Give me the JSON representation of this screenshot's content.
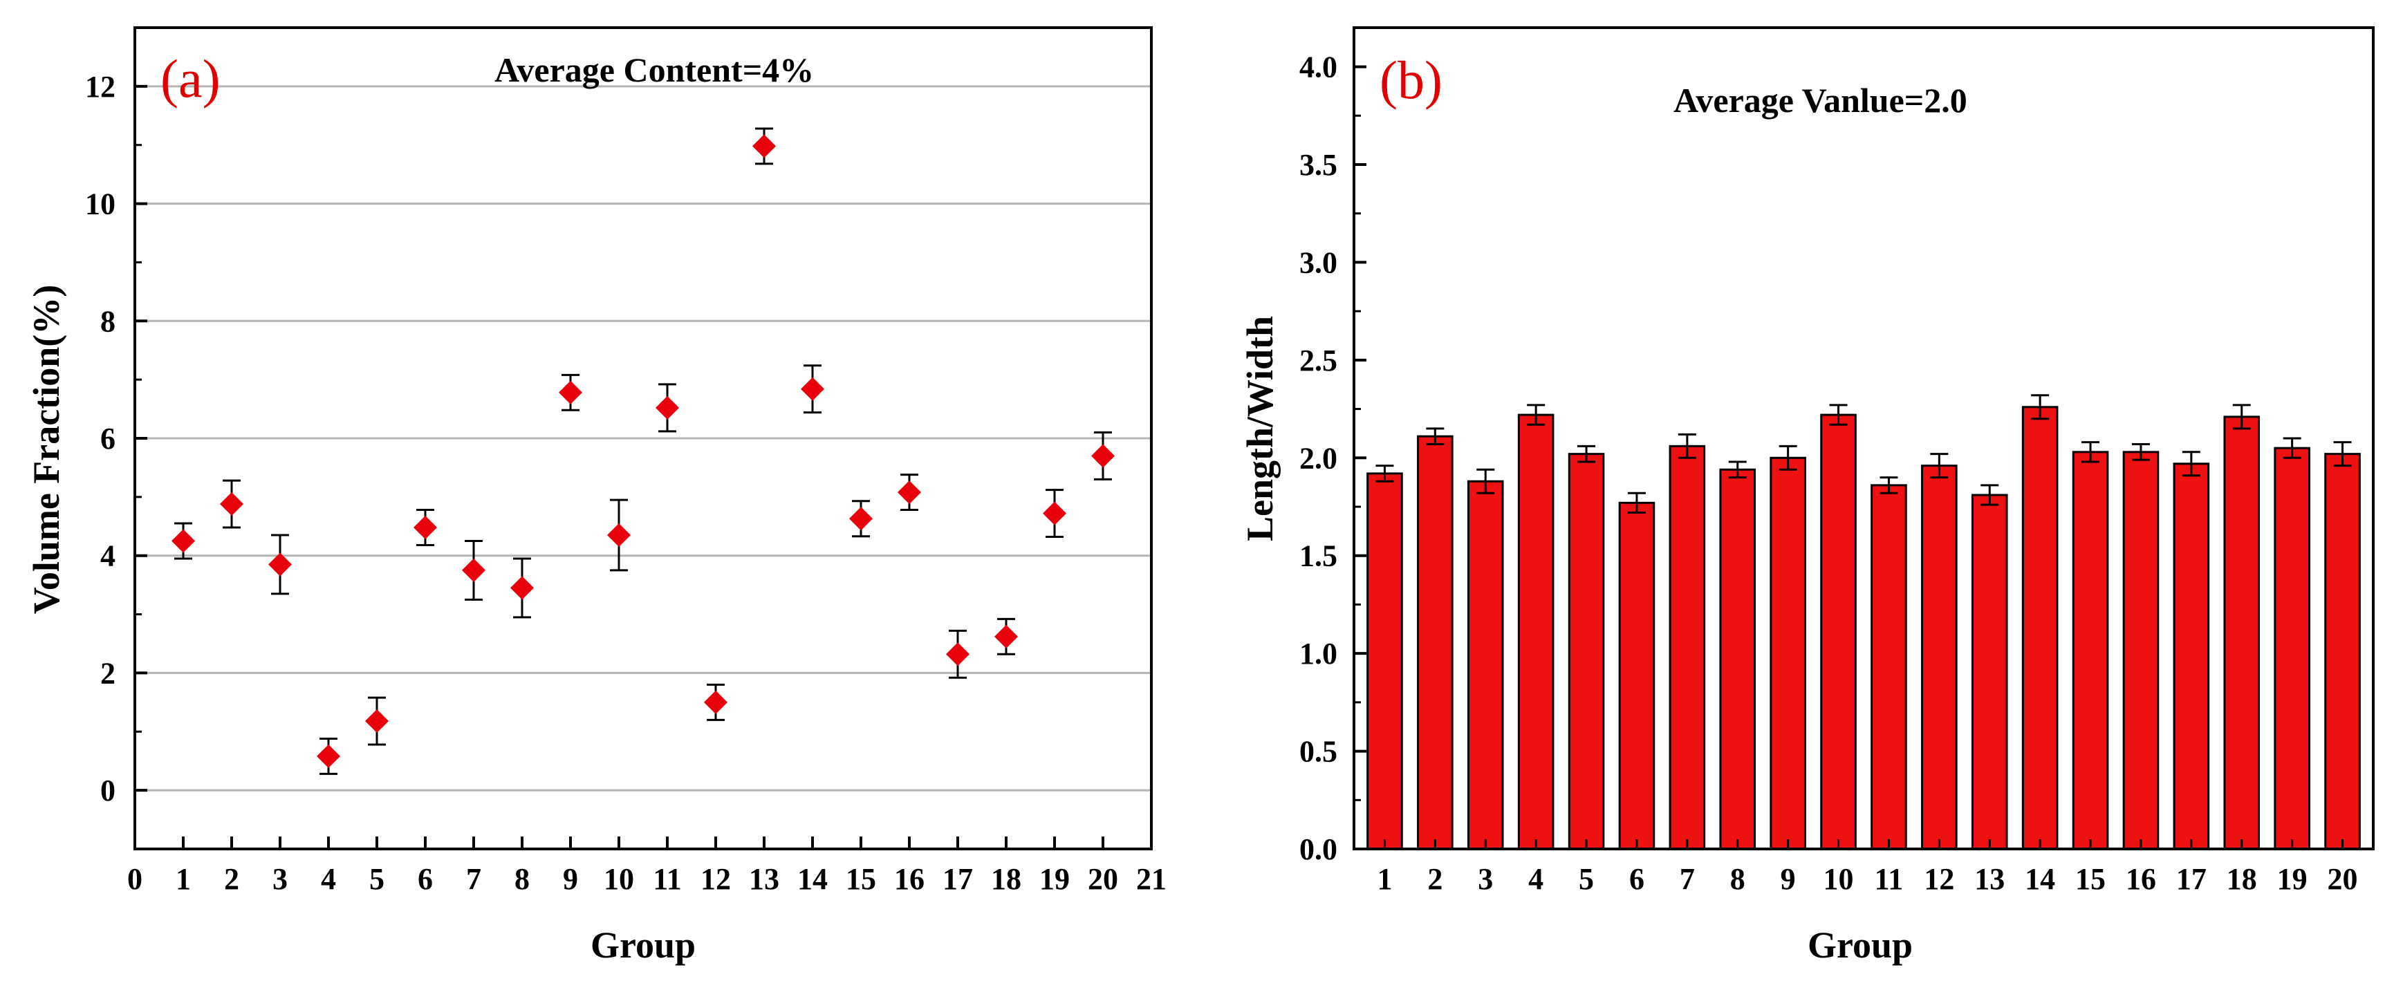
{
  "chart_data": [
    {
      "type": "scatter",
      "panel_label": "(a)",
      "annotation": "Average Content=4%",
      "xlabel": "Group",
      "ylabel": "Volume Fraction(%)",
      "xlim": [
        0,
        21
      ],
      "ylim": [
        -1,
        13
      ],
      "xticks": [
        "0",
        "1",
        "2",
        "3",
        "4",
        "5",
        "6",
        "7",
        "8",
        "9",
        "10",
        "11",
        "12",
        "13",
        "14",
        "15",
        "16",
        "17",
        "18",
        "19",
        "20",
        "21"
      ],
      "yticks": [
        "0",
        "2",
        "4",
        "6",
        "8",
        "10",
        "12"
      ],
      "grid": true,
      "marker": "diamond",
      "color": "#e8000b",
      "x": [
        1,
        2,
        3,
        4,
        5,
        6,
        7,
        8,
        9,
        10,
        11,
        12,
        13,
        14,
        15,
        16,
        17,
        18,
        19,
        20
      ],
      "values": [
        4.25,
        4.88,
        3.85,
        0.58,
        1.18,
        4.48,
        3.75,
        3.45,
        6.78,
        4.35,
        6.52,
        1.5,
        10.98,
        6.84,
        4.63,
        5.08,
        2.32,
        2.62,
        4.72,
        5.7
      ],
      "errors": [
        0.3,
        0.4,
        0.5,
        0.3,
        0.4,
        0.3,
        0.5,
        0.5,
        0.3,
        0.6,
        0.4,
        0.3,
        0.3,
        0.4,
        0.3,
        0.3,
        0.4,
        0.3,
        0.4,
        0.4
      ]
    },
    {
      "type": "bar",
      "panel_label": "(b)",
      "annotation": "Average Vanlue=2.0",
      "xlabel": "Group",
      "ylabel": "Length/Width",
      "ylim": [
        0,
        4.2
      ],
      "yticks": [
        "0.0",
        "0.5",
        "1.0",
        "1.5",
        "2.0",
        "2.5",
        "3.0",
        "3.5",
        "4.0"
      ],
      "grid": false,
      "color": "#ee1111",
      "categories": [
        "1",
        "2",
        "3",
        "4",
        "5",
        "6",
        "7",
        "8",
        "9",
        "10",
        "11",
        "12",
        "13",
        "14",
        "15",
        "16",
        "17",
        "18",
        "19",
        "20"
      ],
      "values": [
        1.92,
        2.11,
        1.88,
        2.22,
        2.02,
        1.77,
        2.06,
        1.94,
        2.0,
        2.22,
        1.86,
        1.96,
        1.81,
        2.26,
        2.03,
        2.03,
        1.97,
        2.21,
        2.05,
        2.02
      ],
      "errors": [
        0.04,
        0.04,
        0.06,
        0.05,
        0.04,
        0.05,
        0.06,
        0.04,
        0.06,
        0.05,
        0.04,
        0.06,
        0.05,
        0.06,
        0.05,
        0.04,
        0.06,
        0.06,
        0.05,
        0.06
      ]
    }
  ]
}
